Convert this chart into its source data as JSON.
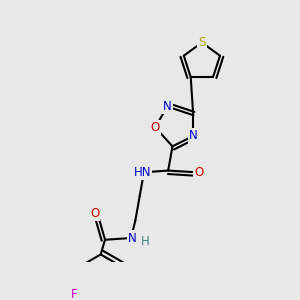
{
  "background_color": "#e8e8e8",
  "bond_color": "#000000",
  "bond_width": 1.5,
  "atom_colors": {
    "N": "#0000cc",
    "O": "#cc0000",
    "S": "#aaaa00",
    "F": "#cc00cc",
    "H": "#408080",
    "C": "#000000"
  },
  "font_size": 8.5,
  "fig_width": 3.0,
  "fig_height": 3.0,
  "dpi": 100
}
